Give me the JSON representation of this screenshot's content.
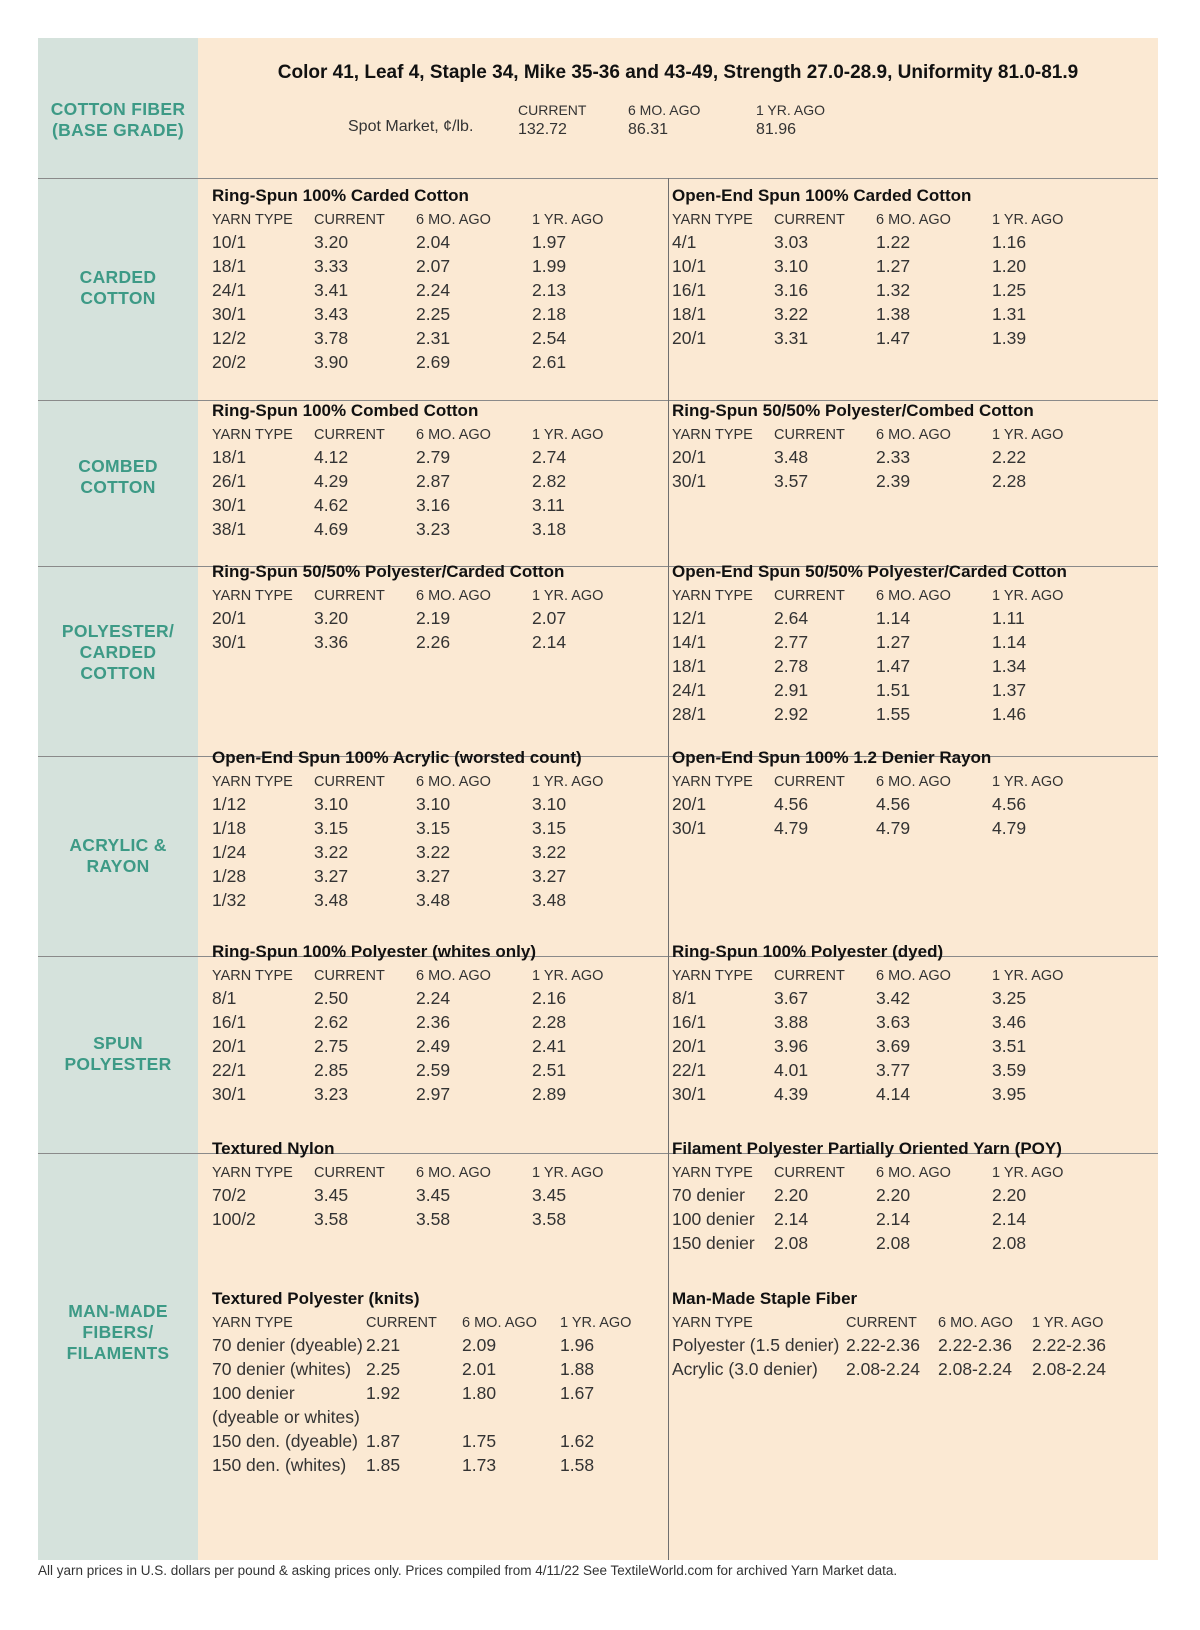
{
  "header": {
    "title": "Color 41, Leaf 4, Staple 34, Mike 35-36 and 43-49, Strength 27.0-28.9, Uniformity 81.0-81.9",
    "spot_label": "Spot Market, ¢/lb.",
    "cols": [
      "CURRENT",
      "6 MO. AGO",
      "1 YR. AGO"
    ],
    "values": [
      "132.72",
      "86.31",
      "81.96"
    ]
  },
  "categories": [
    {
      "name": "COTTON FIBER\n(BASE GRADE)"
    },
    {
      "name": "CARDED\nCOTTON"
    },
    {
      "name": "COMBED\nCOTTON"
    },
    {
      "name": "POLYESTER/\nCARDED\nCOTTON"
    },
    {
      "name": "ACRYLIC &\nRAYON"
    },
    {
      "name": "SPUN\nPOLYESTER"
    },
    {
      "name": "MAN-MADE\nFIBERS/\nFILAMENTS"
    }
  ],
  "sections": [
    {
      "title": "Ring-Spun 100% Carded Cotton",
      "headers": [
        "YARN TYPE",
        "CURRENT",
        "6 MO. AGO",
        "1 YR. AGO"
      ],
      "rows": [
        [
          "10/1",
          "3.20",
          "2.04",
          "1.97"
        ],
        [
          "18/1",
          "3.33",
          "2.07",
          "1.99"
        ],
        [
          "24/1",
          "3.41",
          "2.24",
          "2.13"
        ],
        [
          "30/1",
          "3.43",
          "2.25",
          "2.18"
        ],
        [
          "12/2",
          "3.78",
          "2.31",
          "2.54"
        ],
        [
          "20/2",
          "3.90",
          "2.69",
          "2.61"
        ]
      ]
    },
    {
      "title": "Open-End Spun 100% Carded Cotton",
      "headers": [
        "YARN TYPE",
        "CURRENT",
        "6 MO. AGO",
        "1 YR. AGO"
      ],
      "rows": [
        [
          "4/1",
          "3.03",
          "1.22",
          "1.16"
        ],
        [
          "10/1",
          "3.10",
          "1.27",
          "1.20"
        ],
        [
          "16/1",
          "3.16",
          "1.32",
          "1.25"
        ],
        [
          "18/1",
          "3.22",
          "1.38",
          "1.31"
        ],
        [
          "20/1",
          "3.31",
          "1.47",
          "1.39"
        ]
      ]
    },
    {
      "title": "Ring-Spun 100% Combed Cotton",
      "headers": [
        "YARN TYPE",
        "CURRENT",
        "6 MO. AGO",
        "1 YR. AGO"
      ],
      "rows": [
        [
          "18/1",
          "4.12",
          "2.79",
          "2.74"
        ],
        [
          "26/1",
          "4.29",
          "2.87",
          "2.82"
        ],
        [
          "30/1",
          "4.62",
          "3.16",
          "3.11"
        ],
        [
          "38/1",
          "4.69",
          "3.23",
          "3.18"
        ]
      ]
    },
    {
      "title": "Ring-Spun 50/50% Polyester/Combed Cotton",
      "headers": [
        "YARN TYPE",
        "CURRENT",
        "6 MO. AGO",
        "1 YR. AGO"
      ],
      "rows": [
        [
          "20/1",
          "3.48",
          "2.33",
          "2.22"
        ],
        [
          "30/1",
          "3.57",
          "2.39",
          "2.28"
        ]
      ]
    },
    {
      "title": "Ring-Spun 50/50% Polyester/Carded Cotton",
      "headers": [
        "YARN TYPE",
        "CURRENT",
        "6 MO. AGO",
        "1 YR. AGO"
      ],
      "rows": [
        [
          "20/1",
          "3.20",
          "2.19",
          "2.07"
        ],
        [
          "30/1",
          "3.36",
          "2.26",
          "2.14"
        ]
      ]
    },
    {
      "title": "Open-End Spun 50/50% Polyester/Carded Cotton",
      "headers": [
        "YARN TYPE",
        "CURRENT",
        "6 MO. AGO",
        "1 YR. AGO"
      ],
      "rows": [
        [
          "12/1",
          "2.64",
          "1.14",
          "1.11"
        ],
        [
          "14/1",
          "2.77",
          "1.27",
          "1.14"
        ],
        [
          "18/1",
          "2.78",
          "1.47",
          "1.34"
        ],
        [
          "24/1",
          "2.91",
          "1.51",
          "1.37"
        ],
        [
          "28/1",
          "2.92",
          "1.55",
          "1.46"
        ]
      ]
    },
    {
      "title": "Open-End Spun 100% Acrylic (worsted count)",
      "headers": [
        "YARN TYPE",
        "CURRENT",
        "6 MO. AGO",
        "1 YR. AGO"
      ],
      "rows": [
        [
          "1/12",
          "3.10",
          "3.10",
          "3.10"
        ],
        [
          "1/18",
          "3.15",
          "3.15",
          "3.15"
        ],
        [
          "1/24",
          "3.22",
          "3.22",
          "3.22"
        ],
        [
          "1/28",
          "3.27",
          "3.27",
          "3.27"
        ],
        [
          "1/32",
          "3.48",
          "3.48",
          "3.48"
        ]
      ]
    },
    {
      "title": "Open-End Spun 100% 1.2 Denier Rayon",
      "headers": [
        "YARN TYPE",
        "CURRENT",
        "6 MO. AGO",
        "1 YR. AGO"
      ],
      "rows": [
        [
          "20/1",
          "4.56",
          "4.56",
          "4.56"
        ],
        [
          "30/1",
          "4.79",
          "4.79",
          "4.79"
        ]
      ]
    },
    {
      "title": "Ring-Spun 100% Polyester (whites only)",
      "headers": [
        "YARN TYPE",
        "CURRENT",
        "6 MO. AGO",
        "1 YR. AGO"
      ],
      "rows": [
        [
          "8/1",
          "2.50",
          "2.24",
          "2.16"
        ],
        [
          "16/1",
          "2.62",
          "2.36",
          "2.28"
        ],
        [
          "20/1",
          "2.75",
          "2.49",
          "2.41"
        ],
        [
          "22/1",
          "2.85",
          "2.59",
          "2.51"
        ],
        [
          "30/1",
          "3.23",
          "2.97",
          "2.89"
        ]
      ]
    },
    {
      "title": "Ring-Spun 100% Polyester (dyed)",
      "headers": [
        "YARN TYPE",
        "CURRENT",
        "6 MO. AGO",
        "1 YR. AGO"
      ],
      "rows": [
        [
          "8/1",
          "3.67",
          "3.42",
          "3.25"
        ],
        [
          "16/1",
          "3.88",
          "3.63",
          "3.46"
        ],
        [
          "20/1",
          "3.96",
          "3.69",
          "3.51"
        ],
        [
          "22/1",
          "4.01",
          "3.77",
          "3.59"
        ],
        [
          "30/1",
          "4.39",
          "4.14",
          "3.95"
        ]
      ]
    },
    {
      "title": "Textured Nylon",
      "headers": [
        "YARN TYPE",
        "CURRENT",
        "6 MO. AGO",
        "1 YR. AGO"
      ],
      "rows": [
        [
          "70/2",
          "3.45",
          "3.45",
          "3.45"
        ],
        [
          "100/2",
          "3.58",
          "3.58",
          "3.58"
        ]
      ]
    },
    {
      "title": "Filament Polyester Partially Oriented Yarn (POY)",
      "headers": [
        "YARN TYPE",
        "CURRENT",
        "6 MO. AGO",
        "1 YR. AGO"
      ],
      "rows": [
        [
          "70 denier",
          "2.20",
          "2.20",
          "2.20"
        ],
        [
          "100 denier",
          "2.14",
          "2.14",
          "2.14"
        ],
        [
          "150 denier",
          "2.08",
          "2.08",
          "2.08"
        ]
      ]
    },
    {
      "title": "Textured Polyester (knits)",
      "headers": [
        "YARN TYPE",
        "CURRENT",
        "6 MO. AGO",
        "1 YR. AGO"
      ],
      "rows": [
        [
          "70 denier (dyeable)",
          "2.21",
          "2.09",
          "1.96"
        ],
        [
          "70 denier (whites)",
          "2.25",
          "2.01",
          "1.88"
        ],
        [
          "100 denier",
          "1.92",
          "1.80",
          "1.67"
        ],
        [
          "(dyeable or whites)",
          "",
          "",
          ""
        ],
        [
          "150 den. (dyeable)",
          "1.87",
          "1.75",
          "1.62"
        ],
        [
          "150 den. (whites)",
          "1.85",
          "1.73",
          "1.58"
        ]
      ]
    },
    {
      "title": "Man-Made Staple Fiber",
      "headers": [
        "YARN TYPE",
        "CURRENT",
        "6 MO. AGO",
        "1 YR. AGO"
      ],
      "rows": [
        [
          "Polyester (1.5 denier)",
          "2.22-2.36",
          "2.22-2.36",
          "2.22-2.36"
        ],
        [
          "Acrylic (3.0 denier)",
          "2.08-2.24",
          "2.08-2.24",
          "2.08-2.24"
        ]
      ]
    }
  ],
  "footnote": "All yarn prices in U.S. dollars per pound & asking prices only. Prices compiled from 4/11/22 See TextileWorld.com for archived Yarn Market data."
}
